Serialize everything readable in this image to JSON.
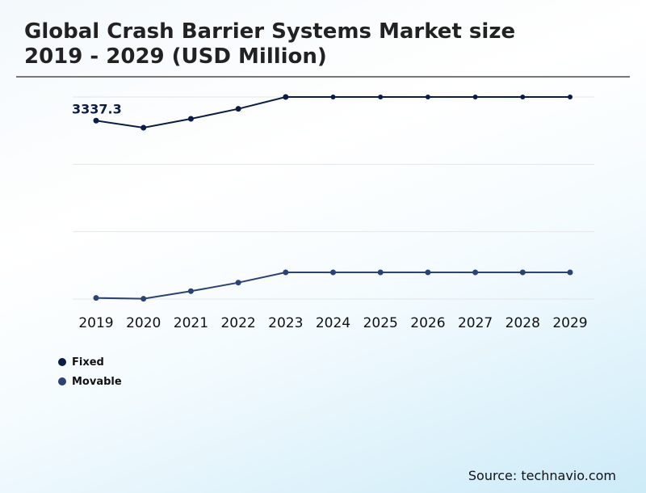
{
  "title_line1": "Global Crash Barrier Systems Market size",
  "title_line2": "2019 - 2029 (USD Million)",
  "source": "Source: technavio.com",
  "chart_data": {
    "type": "line",
    "title": "Global Crash Barrier Systems Market size 2019 - 2029 (USD Million)",
    "categories": [
      "2019",
      "2020",
      "2021",
      "2022",
      "2023",
      "2024",
      "2025",
      "2026",
      "2027",
      "2028",
      "2029"
    ],
    "series": [
      {
        "name": "Fixed",
        "color": "#0b1d44",
        "values": [
          3337.3,
          3205,
          3372,
          3558,
          3780,
          3780,
          3780,
          3780,
          3780,
          3780,
          3780
        ]
      },
      {
        "name": "Movable",
        "color": "#2b4277",
        "values": [
          20,
          5,
          147,
          307,
          499,
          499,
          499,
          499,
          499,
          499,
          499
        ]
      }
    ],
    "data_labels": [
      {
        "series": "Fixed",
        "category": "2019",
        "text": "3337.3"
      }
    ],
    "ylim": [
      0,
      3780
    ],
    "y_gridlines": [
      0,
      1260,
      2520,
      3780
    ],
    "grid": true,
    "y_tick_labels_shown": false,
    "legend_placement": "bottom-left"
  }
}
